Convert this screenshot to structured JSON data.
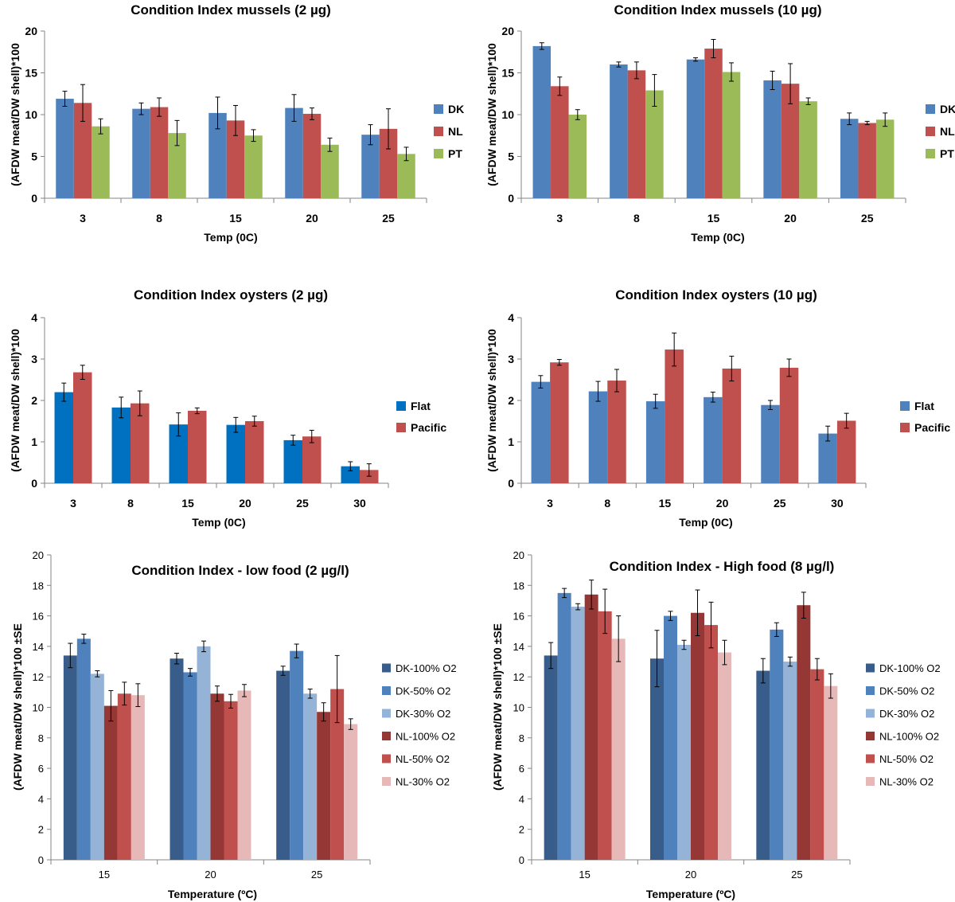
{
  "chart_data": [
    {
      "type": "bar",
      "title": "Condition Index mussels (2 µg)",
      "xlabel": "Temp (0C)",
      "ylabel": "(AFDW meat/DW shell)*100",
      "ylim": [
        0,
        20
      ],
      "yticks": [
        0,
        5,
        10,
        15,
        20
      ],
      "categories": [
        "3",
        "8",
        "15",
        "20",
        "25"
      ],
      "series": [
        {
          "name": "DK",
          "color": "#4f81bd",
          "values": [
            11.9,
            10.7,
            10.2,
            10.8,
            7.6
          ],
          "errors": [
            0.9,
            0.7,
            1.9,
            1.6,
            1.2
          ]
        },
        {
          "name": "NL",
          "color": "#c0504d",
          "values": [
            11.4,
            10.9,
            9.3,
            10.1,
            8.3
          ],
          "errors": [
            2.2,
            1.1,
            1.8,
            0.7,
            2.4
          ]
        },
        {
          "name": "PT",
          "color": "#9bbb59",
          "values": [
            8.6,
            7.8,
            7.5,
            6.4,
            5.3
          ],
          "errors": [
            0.9,
            1.5,
            0.7,
            0.8,
            0.8
          ]
        }
      ]
    },
    {
      "type": "bar",
      "title": "Condition Index mussels (10 µg)",
      "xlabel": "Temp (0C)",
      "ylabel": "(AFDW meat/DW shell)*100",
      "ylim": [
        0,
        20
      ],
      "yticks": [
        0,
        5,
        10,
        15,
        20
      ],
      "categories": [
        "3",
        "8",
        "15",
        "20",
        "25"
      ],
      "series": [
        {
          "name": "DK",
          "color": "#4f81bd",
          "values": [
            18.2,
            16.0,
            16.6,
            14.1,
            9.5
          ],
          "errors": [
            0.4,
            0.3,
            0.2,
            1.1,
            0.7
          ]
        },
        {
          "name": "NL",
          "color": "#c0504d",
          "values": [
            13.4,
            15.3,
            17.9,
            13.7,
            9.0
          ],
          "errors": [
            1.1,
            1.0,
            1.1,
            2.4,
            0.2
          ]
        },
        {
          "name": "PT",
          "color": "#9bbb59",
          "values": [
            10.0,
            12.9,
            15.1,
            11.6,
            9.4
          ],
          "errors": [
            0.6,
            1.9,
            1.1,
            0.4,
            0.8
          ]
        }
      ]
    },
    {
      "type": "bar",
      "title": "Condition Index oysters (2 µg)",
      "xlabel": "Temp (0C)",
      "ylabel": "(AFDW meat/DW shell)*100",
      "ylim": [
        0,
        4
      ],
      "yticks": [
        0,
        1,
        2,
        3,
        4
      ],
      "categories": [
        "3",
        "8",
        "15",
        "20",
        "25",
        "30"
      ],
      "series": [
        {
          "name": "Flat",
          "color": "#0070c0",
          "values": [
            2.2,
            1.83,
            1.42,
            1.41,
            1.04,
            0.41
          ],
          "errors": [
            0.22,
            0.25,
            0.28,
            0.18,
            0.12,
            0.11
          ]
        },
        {
          "name": "Pacific",
          "color": "#c0504d",
          "values": [
            2.68,
            1.93,
            1.75,
            1.5,
            1.13,
            0.32
          ],
          "errors": [
            0.17,
            0.3,
            0.07,
            0.12,
            0.15,
            0.15
          ]
        }
      ]
    },
    {
      "type": "bar",
      "title": "Condition Index oysters (10 µg)",
      "xlabel": "Temp (0C)",
      "ylabel": "(AFDW meat/DW shell)*100",
      "ylim": [
        0,
        4
      ],
      "yticks": [
        0,
        1,
        2,
        3,
        4
      ],
      "categories": [
        "3",
        "8",
        "15",
        "20",
        "25",
        "30"
      ],
      "series": [
        {
          "name": "Flat",
          "color": "#4f81bd",
          "values": [
            2.45,
            2.22,
            1.98,
            2.08,
            1.89,
            1.2
          ],
          "errors": [
            0.15,
            0.24,
            0.17,
            0.12,
            0.11,
            0.18
          ]
        },
        {
          "name": "Pacific",
          "color": "#c0504d",
          "values": [
            2.92,
            2.48,
            3.23,
            2.77,
            2.79,
            1.51
          ],
          "errors": [
            0.07,
            0.27,
            0.4,
            0.3,
            0.21,
            0.18
          ]
        }
      ]
    },
    {
      "type": "bar",
      "title": "Condition Index - low food (2 µg/l)",
      "xlabel": "Temperature (ºC)",
      "ylabel": "(AFDW meat/DW shell)*100 ±SE",
      "ylim": [
        0,
        20
      ],
      "yticks": [
        0,
        2,
        4,
        6,
        8,
        10,
        12,
        14,
        16,
        18,
        20
      ],
      "categories": [
        "15",
        "20",
        "25"
      ],
      "series": [
        {
          "name": "DK-100% O2",
          "color": "#385d8a",
          "values": [
            13.4,
            13.2,
            12.4
          ],
          "errors": [
            0.8,
            0.35,
            0.3
          ]
        },
        {
          "name": "DK-50% O2",
          "color": "#4f81bd",
          "values": [
            14.5,
            12.3,
            13.7
          ],
          "errors": [
            0.3,
            0.25,
            0.45
          ]
        },
        {
          "name": "DK-30% O2",
          "color": "#95b3d7",
          "values": [
            12.2,
            14.0,
            10.9
          ],
          "errors": [
            0.2,
            0.35,
            0.3
          ]
        },
        {
          "name": "NL-100% O2",
          "color": "#953735",
          "values": [
            10.1,
            10.9,
            9.7
          ],
          "errors": [
            1.0,
            0.5,
            0.6
          ]
        },
        {
          "name": "NL-50% O2",
          "color": "#c0504d",
          "values": [
            10.9,
            10.4,
            11.2
          ],
          "errors": [
            0.75,
            0.45,
            2.2
          ]
        },
        {
          "name": "NL-30% O2",
          "color": "#e6b9b8",
          "values": [
            10.8,
            11.1,
            8.9
          ],
          "errors": [
            0.75,
            0.4,
            0.35
          ]
        }
      ]
    },
    {
      "type": "bar",
      "title": "Condition Index - High food (8 µg/l)",
      "xlabel": "Temperature (ºC)",
      "ylabel": "(AFDW meat/DW shell)*100 ±SE",
      "ylim": [
        0,
        20
      ],
      "yticks": [
        0,
        2,
        4,
        6,
        8,
        10,
        12,
        14,
        16,
        18,
        20
      ],
      "categories": [
        "15",
        "20",
        "25"
      ],
      "series": [
        {
          "name": "DK-100% O2",
          "color": "#385d8a",
          "values": [
            13.4,
            13.2,
            12.4
          ],
          "errors": [
            0.85,
            1.85,
            0.8
          ]
        },
        {
          "name": "DK-50% O2",
          "color": "#4f81bd",
          "values": [
            17.5,
            16.0,
            15.1
          ],
          "errors": [
            0.3,
            0.3,
            0.45
          ]
        },
        {
          "name": "DK-30% O2",
          "color": "#95b3d7",
          "values": [
            16.6,
            14.1,
            13.0
          ],
          "errors": [
            0.2,
            0.3,
            0.3
          ]
        },
        {
          "name": "NL-100% O2",
          "color": "#953735",
          "values": [
            17.4,
            16.2,
            16.7
          ],
          "errors": [
            0.95,
            1.5,
            0.85
          ]
        },
        {
          "name": "NL-50% O2",
          "color": "#c0504d",
          "values": [
            16.3,
            15.4,
            12.5
          ],
          "errors": [
            1.45,
            1.5,
            0.7
          ]
        },
        {
          "name": "NL-30% O2",
          "color": "#e6b9b8",
          "values": [
            14.5,
            13.6,
            11.4
          ],
          "errors": [
            1.5,
            0.8,
            0.8
          ]
        }
      ]
    }
  ]
}
